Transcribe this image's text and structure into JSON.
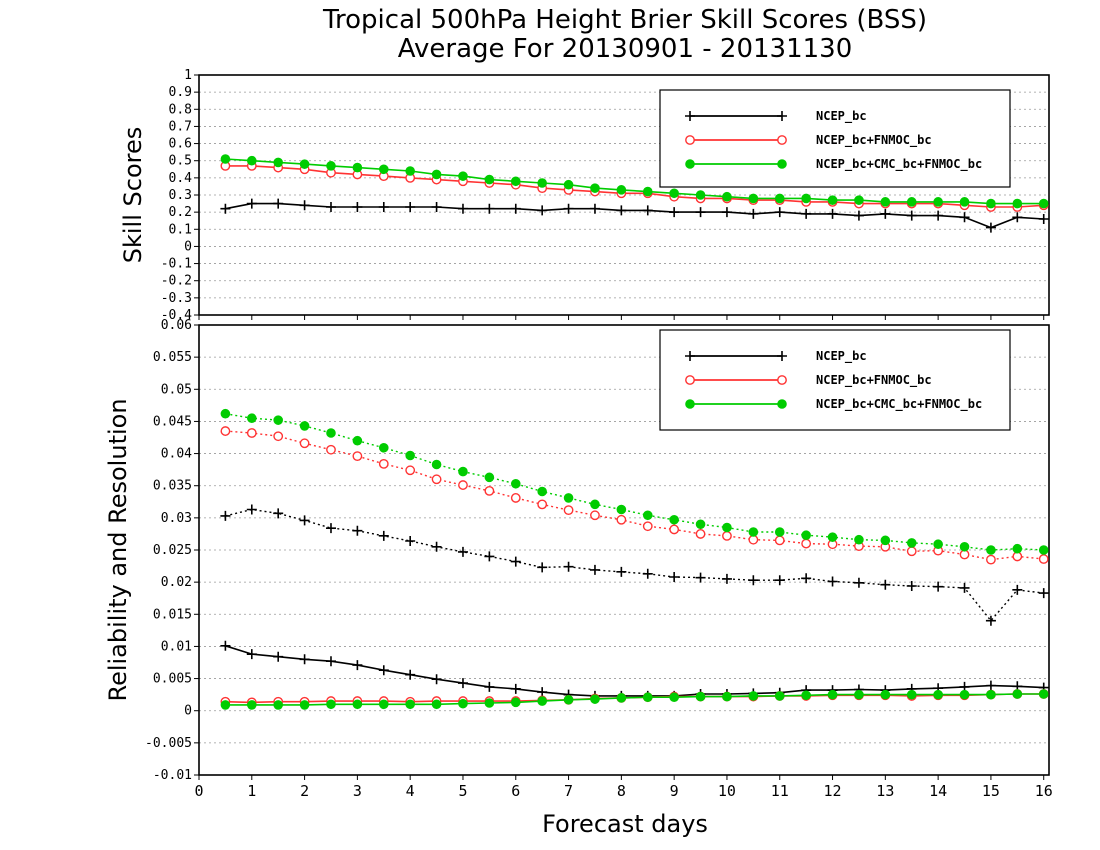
{
  "title_line1": "Tropical 500hPa Height Brier Skill Scores (BSS)",
  "title_line2": "Average For 20130901 - 20131130",
  "xlabel": "Forecast days",
  "colors": {
    "ncep": "#000000",
    "fnmoc": "#ff3333",
    "cmc": "#00cc00"
  },
  "chart_data": [
    {
      "type": "line",
      "ylabel": "Skill Scores",
      "xlim": [
        0,
        16.1
      ],
      "ylim": [
        -0.4,
        1
      ],
      "yticks": [
        "-0.4",
        "-0.3",
        "-0.2",
        "-0.1",
        "0",
        "0.1",
        "0.2",
        "0.3",
        "0.4",
        "0.5",
        "0.6",
        "0.7",
        "0.8",
        "0.9",
        "1"
      ],
      "grid": true,
      "legend_position": "top-right",
      "x": [
        0.5,
        1,
        1.5,
        2,
        2.5,
        3,
        3.5,
        4,
        4.5,
        5,
        5.5,
        6,
        6.5,
        7,
        7.5,
        8,
        8.5,
        9,
        9.5,
        10,
        10.5,
        11,
        11.5,
        12,
        12.5,
        13,
        13.5,
        14,
        14.5,
        15,
        15.5,
        16
      ],
      "series": [
        {
          "name": "NCEP_bc",
          "marker": "plus",
          "style": "solid",
          "values": [
            0.22,
            0.25,
            0.25,
            0.24,
            0.23,
            0.23,
            0.23,
            0.23,
            0.23,
            0.22,
            0.22,
            0.22,
            0.21,
            0.22,
            0.22,
            0.21,
            0.21,
            0.2,
            0.2,
            0.2,
            0.19,
            0.2,
            0.19,
            0.19,
            0.18,
            0.19,
            0.18,
            0.18,
            0.17,
            0.11,
            0.17,
            0.16
          ]
        },
        {
          "name": "NCEP_bc+FNMOC_bc",
          "marker": "open-circle",
          "style": "solid",
          "values": [
            0.47,
            0.47,
            0.46,
            0.45,
            0.43,
            0.42,
            0.41,
            0.4,
            0.39,
            0.38,
            0.37,
            0.36,
            0.34,
            0.33,
            0.32,
            0.31,
            0.31,
            0.29,
            0.28,
            0.28,
            0.27,
            0.27,
            0.26,
            0.26,
            0.25,
            0.25,
            0.25,
            0.25,
            0.24,
            0.23,
            0.23,
            0.24
          ]
        },
        {
          "name": "NCEP_bc+CMC_bc+FNMOC_bc",
          "marker": "filled-circle",
          "style": "solid",
          "values": [
            0.51,
            0.5,
            0.49,
            0.48,
            0.47,
            0.46,
            0.45,
            0.44,
            0.42,
            0.41,
            0.39,
            0.38,
            0.37,
            0.36,
            0.34,
            0.33,
            0.32,
            0.31,
            0.3,
            0.29,
            0.28,
            0.28,
            0.28,
            0.27,
            0.27,
            0.26,
            0.26,
            0.26,
            0.26,
            0.25,
            0.25,
            0.25
          ]
        }
      ]
    },
    {
      "type": "line",
      "ylabel": "Reliability and Resolution",
      "xlim": [
        0,
        16.1
      ],
      "ylim": [
        -0.01,
        0.06
      ],
      "yticks": [
        "-0.01",
        "-0.005",
        "0",
        "0.005",
        "0.01",
        "0.015",
        "0.02",
        "0.025",
        "0.03",
        "0.035",
        "0.04",
        "0.045",
        "0.05",
        "0.055",
        "0.06"
      ],
      "xticks": [
        "0",
        "1",
        "2",
        "3",
        "4",
        "5",
        "6",
        "7",
        "8",
        "9",
        "10",
        "11",
        "12",
        "13",
        "14",
        "15",
        "16"
      ],
      "grid": true,
      "legend_position": "top-right",
      "x": [
        0.5,
        1,
        1.5,
        2,
        2.5,
        3,
        3.5,
        4,
        4.5,
        5,
        5.5,
        6,
        6.5,
        7,
        7.5,
        8,
        8.5,
        9,
        9.5,
        10,
        10.5,
        11,
        11.5,
        12,
        12.5,
        13,
        13.5,
        14,
        14.5,
        15,
        15.5,
        16
      ],
      "series": [
        {
          "name": "NCEP_bc",
          "marker": "plus",
          "style": "dotted",
          "values": [
            0.0303,
            0.0313,
            0.0307,
            0.0296,
            0.0284,
            0.028,
            0.0272,
            0.0264,
            0.0255,
            0.0247,
            0.024,
            0.0232,
            0.0223,
            0.0224,
            0.0219,
            0.0216,
            0.0213,
            0.0208,
            0.0207,
            0.0205,
            0.0203,
            0.0203,
            0.0206,
            0.0201,
            0.0199,
            0.0196,
            0.0194,
            0.0193,
            0.0191,
            0.014,
            0.0188,
            0.0183
          ]
        },
        {
          "name": "NCEP_bc+FNMOC_bc",
          "marker": "open-circle",
          "style": "dotted",
          "values": [
            0.0435,
            0.0432,
            0.0427,
            0.0416,
            0.0406,
            0.0396,
            0.0384,
            0.0374,
            0.036,
            0.0351,
            0.0342,
            0.0331,
            0.0321,
            0.0312,
            0.0304,
            0.0297,
            0.0287,
            0.0282,
            0.0275,
            0.0272,
            0.0266,
            0.0265,
            0.026,
            0.0259,
            0.0256,
            0.0255,
            0.0248,
            0.0249,
            0.0243,
            0.0235,
            0.024,
            0.0236
          ]
        },
        {
          "name": "NCEP_bc+CMC_bc+FNMOC_bc",
          "marker": "filled-circle",
          "style": "dotted",
          "values": [
            0.0462,
            0.0455,
            0.0452,
            0.0443,
            0.0432,
            0.042,
            0.0409,
            0.0397,
            0.0383,
            0.0372,
            0.0363,
            0.0353,
            0.0341,
            0.0331,
            0.0321,
            0.0313,
            0.0304,
            0.0297,
            0.029,
            0.0285,
            0.0278,
            0.0278,
            0.0273,
            0.027,
            0.0266,
            0.0265,
            0.0261,
            0.0259,
            0.0255,
            0.025,
            0.0252,
            0.025
          ]
        },
        {
          "name": "NCEP_bc",
          "marker": "plus",
          "style": "solid",
          "legend": false,
          "values": [
            0.0101,
            0.0088,
            0.0084,
            0.008,
            0.0077,
            0.0071,
            0.0063,
            0.0056,
            0.0049,
            0.0043,
            0.0037,
            0.0034,
            0.0029,
            0.0025,
            0.0023,
            0.0023,
            0.0023,
            0.0023,
            0.0026,
            0.0026,
            0.0027,
            0.0028,
            0.0032,
            0.0032,
            0.0033,
            0.0032,
            0.0034,
            0.0035,
            0.0037,
            0.0039,
            0.0038,
            0.0036
          ]
        },
        {
          "name": "NCEP_bc+FNMOC_bc",
          "marker": "open-circle",
          "style": "solid",
          "legend": false,
          "values": [
            0.0014,
            0.0013,
            0.0014,
            0.0014,
            0.0015,
            0.0015,
            0.0015,
            0.0014,
            0.0015,
            0.0015,
            0.0015,
            0.0015,
            0.0016,
            0.0017,
            0.0019,
            0.002,
            0.0021,
            0.0022,
            0.0022,
            0.0022,
            0.0022,
            0.0023,
            0.0023,
            0.0024,
            0.0024,
            0.0024,
            0.0023,
            0.0024,
            0.0024,
            0.0025,
            0.0026,
            0.0026
          ]
        },
        {
          "name": "NCEP_bc+CMC_bc+FNMOC_bc",
          "marker": "filled-circle",
          "style": "solid",
          "legend": false,
          "values": [
            0.0009,
            0.0009,
            0.0009,
            0.0009,
            0.001,
            0.001,
            0.001,
            0.001,
            0.001,
            0.0011,
            0.0012,
            0.0013,
            0.0015,
            0.0017,
            0.0018,
            0.002,
            0.0021,
            0.0021,
            0.0022,
            0.0022,
            0.0023,
            0.0023,
            0.0024,
            0.0025,
            0.0025,
            0.0025,
            0.0025,
            0.0025,
            0.0025,
            0.0025,
            0.0026,
            0.0026
          ]
        }
      ]
    }
  ]
}
